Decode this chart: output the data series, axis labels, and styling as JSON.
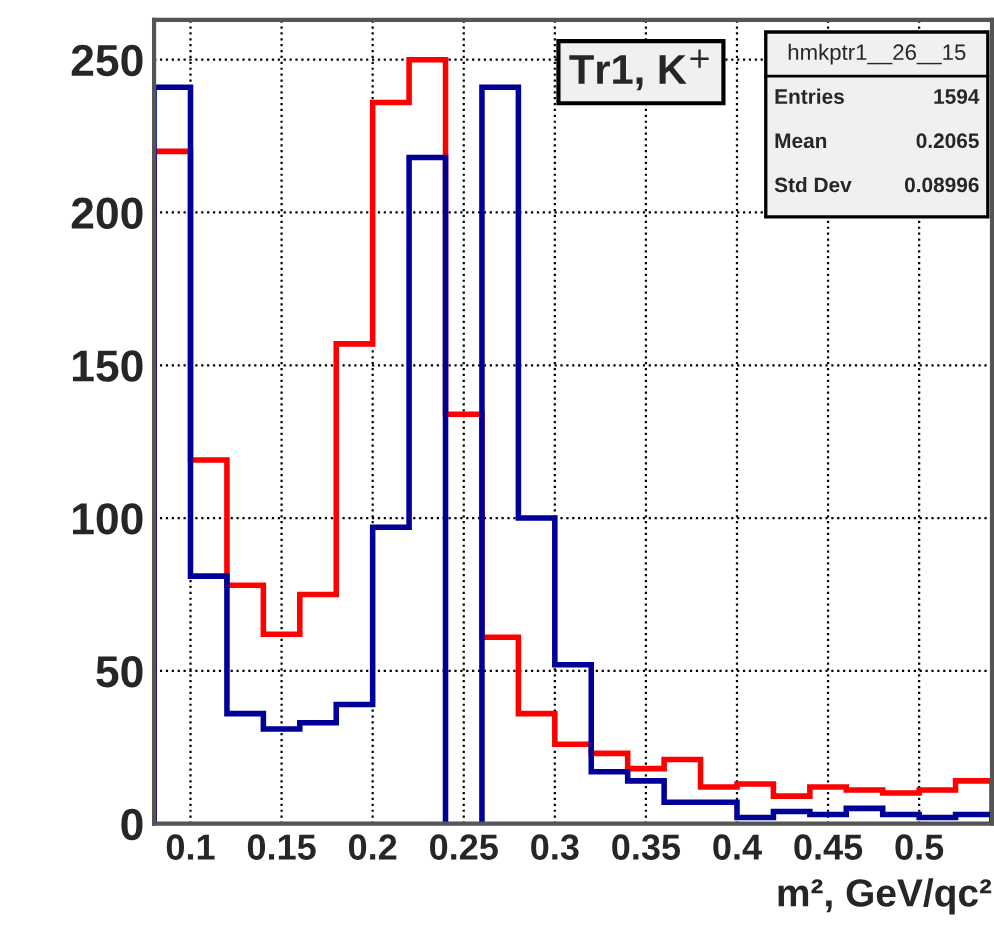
{
  "chart_data": {
    "type": "histogram",
    "title": "Tr1, K$^{+}$",
    "xlabel": "m², GeV/qc²",
    "bins": [
      0.08,
      0.1,
      0.12,
      0.14,
      0.16,
      0.18,
      0.2,
      0.22,
      0.24,
      0.26,
      0.28,
      0.3,
      0.32,
      0.34,
      0.36,
      0.38,
      0.4,
      0.42,
      0.44,
      0.46,
      0.48,
      0.5,
      0.52,
      0.54
    ],
    "series": [
      {
        "color": "#ff0000",
        "values": [
          220,
          119,
          78,
          62,
          75,
          157,
          236,
          250,
          134,
          61,
          36,
          26,
          23,
          18,
          21,
          12,
          13,
          9,
          12,
          11,
          10,
          11,
          14
        ]
      },
      {
        "color": "#000099",
        "values": [
          241,
          81,
          36,
          31,
          33,
          39,
          97,
          218,
          null,
          241,
          100,
          52,
          17,
          14,
          7,
          7,
          2,
          4,
          3,
          5,
          3,
          2,
          3
        ]
      }
    ],
    "xlim": [
      0.08,
      0.54
    ],
    "ylim": [
      0,
      263
    ],
    "xticks": [
      {
        "value": 0.1,
        "label": "0.1"
      },
      0.15,
      {
        "value": 0.2,
        "label": "0.2"
      },
      0.25,
      {
        "value": 0.3,
        "label": "0.3"
      },
      0.35,
      {
        "value": 0.4,
        "label": "0.4"
      },
      0.45,
      {
        "value": 0.5,
        "label": "0.5"
      }
    ],
    "yticks": [
      0,
      50,
      100,
      150,
      200,
      250
    ],
    "grid": true,
    "annotations": [
      "hmkptr1__26__15",
      "Entries",
      "1594",
      "Mean",
      "0.2065",
      "Std Dev",
      "0.08996"
    ]
  }
}
